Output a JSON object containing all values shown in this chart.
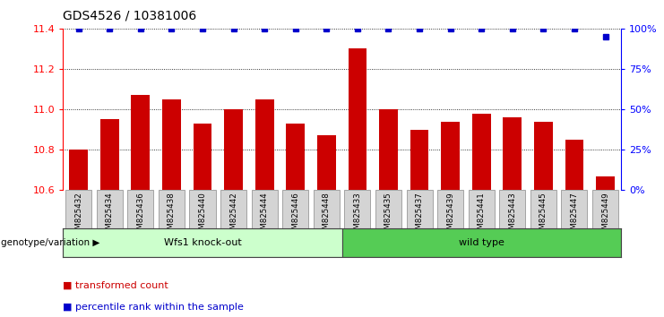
{
  "title": "GDS4526 / 10381006",
  "samples": [
    "GSM825432",
    "GSM825434",
    "GSM825436",
    "GSM825438",
    "GSM825440",
    "GSM825442",
    "GSM825444",
    "GSM825446",
    "GSM825448",
    "GSM825433",
    "GSM825435",
    "GSM825437",
    "GSM825439",
    "GSM825441",
    "GSM825443",
    "GSM825445",
    "GSM825447",
    "GSM825449"
  ],
  "bar_values": [
    10.8,
    10.95,
    11.07,
    11.05,
    10.93,
    11.0,
    11.05,
    10.93,
    10.87,
    11.3,
    11.0,
    10.9,
    10.94,
    10.98,
    10.96,
    10.94,
    10.85,
    10.67
  ],
  "percentile_values": [
    100,
    100,
    100,
    100,
    100,
    100,
    100,
    100,
    100,
    100,
    100,
    100,
    100,
    100,
    100,
    100,
    100,
    95
  ],
  "ylim_left": [
    10.6,
    11.4
  ],
  "ylim_right": [
    0,
    100
  ],
  "yticks_left": [
    10.6,
    10.8,
    11.0,
    11.2,
    11.4
  ],
  "yticks_right": [
    0,
    25,
    50,
    75,
    100
  ],
  "bar_color": "#cc0000",
  "percentile_color": "#0000cc",
  "group1_label": "Wfs1 knock-out",
  "group2_label": "wild type",
  "group1_color": "#ccffcc",
  "group2_color": "#55cc55",
  "group1_count": 9,
  "group2_count": 9,
  "xlabel_left": "genotype/variation",
  "legend_item1": "transformed count",
  "legend_item2": "percentile rank within the sample",
  "title_fontsize": 10,
  "tick_fontsize": 8,
  "bar_label_fontsize": 6,
  "group_fontsize": 8,
  "legend_fontsize": 8
}
